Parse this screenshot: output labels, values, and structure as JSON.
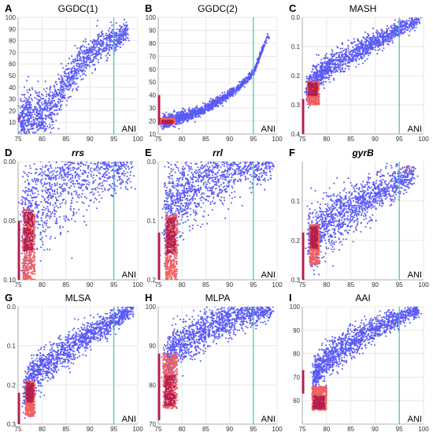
{
  "colors": {
    "within_genus": "#5a5af5",
    "between_genera": "#f06060",
    "overlap": "#b3204f",
    "threshold_line": "#3cc8a0",
    "grid": "#e2e2e2"
  },
  "chart_data": [
    {
      "letter": "A",
      "title": "GGDC(1)",
      "italic": false,
      "type": "scatter",
      "xlabel": "ANI",
      "xlim": [
        75,
        100
      ],
      "xticks": [
        75,
        80,
        85,
        90,
        95,
        100
      ],
      "ylim": [
        0,
        100
      ],
      "yticks": [
        10,
        20,
        30,
        40,
        50,
        60,
        70,
        80,
        90,
        100
      ],
      "yreverse": false,
      "threshold_x": 95,
      "grid": true,
      "xlabel_pos": "bottom-right",
      "blue_curve": [
        [
          75.5,
          12
        ],
        [
          77,
          12.5
        ],
        [
          80,
          15
        ],
        [
          83,
          30
        ],
        [
          86,
          50
        ],
        [
          89,
          65
        ],
        [
          92,
          75
        ],
        [
          95,
          80
        ],
        [
          98,
          88
        ]
      ],
      "blue_spread": 9,
      "red_band": null,
      "left_strip": [
        12,
        14
      ],
      "arrows": false
    },
    {
      "letter": "B",
      "title": "GGDC(2)",
      "italic": false,
      "type": "scatter",
      "xlabel": "ANI",
      "xlim": [
        75,
        100
      ],
      "xticks": [
        75,
        80,
        85,
        90,
        95,
        100
      ],
      "ylim": [
        10,
        100
      ],
      "yticks": [
        10,
        20,
        30,
        40,
        50,
        60,
        70,
        80,
        90,
        100
      ],
      "yreverse": false,
      "threshold_x": 95,
      "grid": true,
      "xlabel_pos": "bottom-right",
      "blue_curve": [
        [
          76,
          19
        ],
        [
          78,
          21
        ],
        [
          80,
          23
        ],
        [
          84,
          28
        ],
        [
          88,
          36
        ],
        [
          92,
          46
        ],
        [
          95,
          57
        ],
        [
          98,
          85
        ]
      ],
      "blue_spread": 2,
      "red_band": {
        "x": [
          75.5,
          78.5
        ],
        "y": [
          18,
          22
        ]
      },
      "left_strip": [
        17,
        40
      ],
      "arrows": false
    },
    {
      "letter": "C",
      "title": "MASH",
      "italic": false,
      "type": "scatter",
      "xlabel": "ANI",
      "xlim": [
        75,
        100
      ],
      "xticks": [
        75,
        80,
        85,
        90,
        95,
        100
      ],
      "ylim": [
        0,
        0.4
      ],
      "yticks": [
        0.0,
        0.1,
        0.2,
        0.3,
        0.4
      ],
      "yreverse": true,
      "threshold_x": 95,
      "grid": true,
      "xlabel_pos": "bottom-right",
      "blue_curve": [
        [
          76,
          0.25
        ],
        [
          78,
          0.21
        ],
        [
          80,
          0.175
        ],
        [
          85,
          0.13
        ],
        [
          90,
          0.085
        ],
        [
          95,
          0.04
        ],
        [
          99,
          0.01
        ]
      ],
      "blue_spread": 0.02,
      "red_band": {
        "x": [
          76,
          78.5
        ],
        "y": [
          0.22,
          0.3
        ]
      },
      "left_strip": [
        0.28,
        0.4
      ],
      "arrows": false
    },
    {
      "letter": "D",
      "title": "rrs",
      "italic": true,
      "type": "scatter",
      "xlabel": "ANI",
      "xlim": [
        75,
        100
      ],
      "xticks": [
        75,
        80,
        85,
        90,
        95,
        100
      ],
      "ylim": [
        0,
        0.1
      ],
      "yticks": [
        0.0,
        0.05,
        0.1
      ],
      "yreverse": true,
      "threshold_x": 95,
      "grid": true,
      "xlabel_pos": "bottom-right",
      "blue_curve": [
        [
          76,
          0.06
        ],
        [
          78,
          0.04
        ],
        [
          80,
          0.028
        ],
        [
          84,
          0.016
        ],
        [
          88,
          0.008
        ],
        [
          92,
          0.003
        ],
        [
          96,
          0.001
        ],
        [
          99,
          0.0
        ]
      ],
      "blue_spread": 0.02,
      "red_band": {
        "x": [
          76,
          78.5
        ],
        "y": [
          0.04,
          0.1
        ]
      },
      "left_strip": [
        0.05,
        0.1
      ],
      "arrows": false
    },
    {
      "letter": "E",
      "title": "rrl",
      "italic": true,
      "type": "scatter",
      "xlabel": "ANI",
      "xlim": [
        75,
        100
      ],
      "xticks": [
        75,
        80,
        85,
        90,
        95,
        100
      ],
      "ylim": [
        0,
        0.2
      ],
      "yticks": [
        0.0,
        0.1,
        0.2
      ],
      "yreverse": true,
      "threshold_x": 95,
      "grid": true,
      "xlabel_pos": "bottom-right",
      "blue_curve": [
        [
          76.5,
          0.1
        ],
        [
          78,
          0.075
        ],
        [
          80,
          0.055
        ],
        [
          84,
          0.033
        ],
        [
          88,
          0.018
        ],
        [
          92,
          0.007
        ],
        [
          96,
          0.002
        ],
        [
          99,
          0.0
        ]
      ],
      "blue_spread": 0.03,
      "red_band": {
        "x": [
          76.5,
          79
        ],
        "y": [
          0.09,
          0.2
        ]
      },
      "left_strip": [
        0.12,
        0.2
      ],
      "arrows": false
    },
    {
      "letter": "F",
      "title": "gyrB",
      "italic": true,
      "type": "scatter",
      "xlabel": "ANI",
      "xlim": [
        75,
        100
      ],
      "xticks": [
        75,
        80,
        85,
        90,
        95,
        100
      ],
      "ylim": [
        0,
        0.3
      ],
      "yticks": [
        0.1,
        0.2,
        0.3
      ],
      "yreverse": true,
      "threshold_x": 95,
      "grid": true,
      "xlabel_pos": "bottom-right",
      "blue_curve": [
        [
          76.5,
          0.2
        ],
        [
          78,
          0.185
        ],
        [
          80,
          0.16
        ],
        [
          85,
          0.12
        ],
        [
          90,
          0.085
        ],
        [
          95,
          0.05
        ],
        [
          98,
          0.03
        ]
      ],
      "blue_spread": 0.03,
      "red_band": {
        "x": [
          76.5,
          78.5
        ],
        "y": [
          0.16,
          0.26
        ]
      },
      "left_strip": [
        0.18,
        0.3
      ],
      "arrows": true
    },
    {
      "letter": "G",
      "title": "MLSA",
      "italic": false,
      "type": "scatter",
      "xlabel": "ANI",
      "xlim": [
        75,
        100
      ],
      "xticks": [
        75,
        80,
        85,
        90,
        95,
        100
      ],
      "ylim": [
        0,
        0.3
      ],
      "yticks": [
        0.0,
        0.1,
        0.2,
        0.3
      ],
      "yreverse": true,
      "threshold_x": 95,
      "grid": true,
      "xlabel_pos": "bottom-right",
      "blue_curve": [
        [
          76.5,
          0.22
        ],
        [
          78,
          0.18
        ],
        [
          80,
          0.155
        ],
        [
          85,
          0.11
        ],
        [
          90,
          0.07
        ],
        [
          95,
          0.035
        ],
        [
          99,
          0.005
        ]
      ],
      "blue_spread": 0.02,
      "red_band": {
        "x": [
          76.5,
          78.5
        ],
        "y": [
          0.19,
          0.28
        ]
      },
      "left_strip": [
        0.22,
        0.3
      ],
      "arrows": false
    },
    {
      "letter": "H",
      "title": "MLPA",
      "italic": false,
      "type": "scatter",
      "xlabel": "ANI",
      "xlim": [
        75,
        100
      ],
      "xticks": [
        75,
        80,
        85,
        90,
        95,
        100
      ],
      "ylim": [
        70,
        100
      ],
      "yticks": [
        70,
        80,
        90,
        100
      ],
      "yreverse": false,
      "threshold_x": 95,
      "grid": true,
      "xlabel_pos": "bottom-right",
      "blue_curve": [
        [
          76.5,
          85
        ],
        [
          78,
          88
        ],
        [
          80,
          90.5
        ],
        [
          84,
          93.5
        ],
        [
          88,
          96
        ],
        [
          92,
          97.5
        ],
        [
          96,
          98.8
        ],
        [
          99,
          99.6
        ]
      ],
      "blue_spread": 2.5,
      "red_band": {
        "x": [
          76,
          79
        ],
        "y": [
          74,
          88
        ]
      },
      "left_strip": [
        71,
        88
      ],
      "arrows": false
    },
    {
      "letter": "I",
      "title": "AAI",
      "italic": false,
      "type": "scatter",
      "xlabel": "ANI",
      "xlim": [
        75,
        100
      ],
      "xticks": [
        75,
        80,
        85,
        90,
        95,
        100
      ],
      "ylim": [
        50,
        100
      ],
      "yticks": [
        60,
        70,
        80,
        90,
        100
      ],
      "yreverse": false,
      "threshold_x": 95,
      "grid": true,
      "xlabel_pos": "bottom-right",
      "blue_curve": [
        [
          77.5,
          70
        ],
        [
          79,
          75
        ],
        [
          81,
          79
        ],
        [
          85,
          85
        ],
        [
          89,
          89.5
        ],
        [
          93,
          93.5
        ],
        [
          96,
          96
        ],
        [
          99,
          98.5
        ]
      ],
      "blue_spread": 3,
      "red_band": {
        "x": [
          77,
          80
        ],
        "y": [
          56,
          66
        ]
      },
      "left_strip": [
        63,
        73
      ],
      "arrows": false
    }
  ]
}
